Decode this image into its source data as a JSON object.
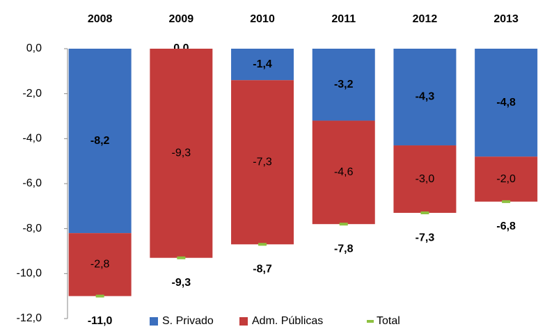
{
  "chart_data": {
    "type": "bar",
    "stacked": true,
    "categories": [
      "2008",
      "2009",
      "2010",
      "2011",
      "2012",
      "2013"
    ],
    "series": [
      {
        "name": "S. Privado",
        "color": "#3b6fbe",
        "values": [
          -8.2,
          0.0,
          -1.4,
          -3.2,
          -4.3,
          -4.8
        ],
        "value_labels": [
          "-8,2",
          "0,0",
          "-1,4",
          "-3,2",
          "-4,3",
          "-4,8"
        ]
      },
      {
        "name": "Adm. Públicas",
        "color": "#c33b3a",
        "values": [
          -2.8,
          -9.3,
          -7.3,
          -4.6,
          -3.0,
          -2.0
        ],
        "value_labels": [
          "-2,8",
          "-9,3",
          "-7,3",
          "-4,6",
          "-3,0",
          "-2,0"
        ]
      },
      {
        "name": "Total",
        "type": "marker",
        "color": "#8dc040",
        "values": [
          -11.0,
          -9.3,
          -8.7,
          -7.8,
          -7.3,
          -6.8
        ],
        "value_labels": [
          "-11,0",
          "-9,3",
          "-8,7",
          "-7,8",
          "-7,3",
          "-6,8"
        ]
      }
    ],
    "ylim": [
      -12,
      0
    ],
    "yticks": [
      {
        "value": 0,
        "label": "0,0"
      },
      {
        "value": -2,
        "label": "-2,0"
      },
      {
        "value": -4,
        "label": "-4,0"
      },
      {
        "value": -6,
        "label": "-6,0"
      },
      {
        "value": -8,
        "label": "-8,0"
      },
      {
        "value": -10,
        "label": "-10,0"
      },
      {
        "value": -12,
        "label": "-12,0"
      }
    ],
    "legend": "bottom"
  }
}
